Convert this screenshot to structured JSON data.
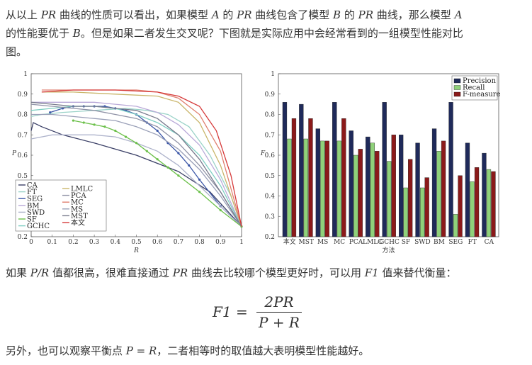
{
  "text": {
    "p1_a": "从以上 ",
    "p1_m1": "PR",
    "p1_b": " 曲线的性质可以看出，如果模型 ",
    "p1_m2": "A",
    "p1_c": " 的 ",
    "p1_m3": "PR",
    "p1_d": " 曲线包含了模型 ",
    "p1_m4": "B",
    "p1_e": " 的 ",
    "p1_m5": "PR",
    "p1_f": " 曲线，那么模型 ",
    "p1_m6": "A",
    "p1_g": "的性能要优于 ",
    "p1_m7": "B",
    "p1_h": "。但是如果二者发生交叉呢？下图就是实际应用中会经常看到的一组模型性能对比",
    "p1_i": "图。",
    "p2_a": "如果 ",
    "p2_m1": "P/R",
    "p2_b": " 值都很高，很难直接通过 ",
    "p2_m2": "PR",
    "p2_c": " 曲线去比较哪个模型更好时，可以用 ",
    "p2_m3": "F1",
    "p2_d": " 值来替代衡量：",
    "formula_lhs": "F1 =",
    "formula_num": "2PR",
    "formula_den": "P + R",
    "p3_a": "另外，也可以观察平衡点 ",
    "p3_m1": "P = R",
    "p3_b": "，二者相等时的取值越大表明模型性能越好。"
  },
  "chart_data": [
    {
      "type": "line",
      "xlabel": "R",
      "ylabel": "P",
      "xlim": [
        0,
        1
      ],
      "ylim": [
        0.2,
        1
      ],
      "xticks": [
        "0",
        "0.1",
        "0.2",
        "0.3",
        "0.4",
        "0.5",
        "0.6",
        "0.7",
        "0.8",
        "0.9",
        "1"
      ],
      "yticks": [
        "0.2",
        "0.3",
        "0.4",
        "0.5",
        "0.6",
        "0.7",
        "0.8",
        "0.9",
        "1"
      ],
      "legend_left": [
        "CA",
        "FT",
        "SEG",
        "BM",
        "SWD",
        "SF",
        "GCHC"
      ],
      "legend_right": [
        "LMLC",
        "PCA",
        "MC",
        "MS",
        "MST",
        "本文"
      ],
      "series": [
        {
          "name": "CA",
          "color": "#3a3f66",
          "x": [
            0,
            0.01,
            0.05,
            0.15,
            0.3,
            0.5,
            0.7,
            0.85,
            1
          ],
          "y": [
            0.72,
            0.76,
            0.74,
            0.7,
            0.66,
            0.6,
            0.52,
            0.42,
            0.25
          ]
        },
        {
          "name": "FT",
          "color": "#9bd3c9",
          "x": [
            0,
            0.05,
            0.15,
            0.3,
            0.45,
            0.55,
            0.65,
            0.75,
            0.85,
            0.95,
            1
          ],
          "y": [
            0.79,
            0.8,
            0.81,
            0.82,
            0.83,
            0.82,
            0.8,
            0.74,
            0.6,
            0.4,
            0.25
          ]
        },
        {
          "name": "SEG",
          "color": "#3d58a8",
          "x": [
            0.09,
            0.15,
            0.2,
            0.25,
            0.3,
            0.35,
            0.4,
            0.45,
            0.5,
            0.55,
            0.6,
            0.65,
            0.7,
            0.75,
            0.8,
            0.9,
            1
          ],
          "y": [
            0.81,
            0.83,
            0.84,
            0.84,
            0.84,
            0.84,
            0.83,
            0.82,
            0.8,
            0.76,
            0.72,
            0.66,
            0.61,
            0.55,
            0.48,
            0.35,
            0.25
          ]
        },
        {
          "name": "BM",
          "color": "#b9a9d8",
          "x": [
            0,
            0.1,
            0.2,
            0.3,
            0.4,
            0.5,
            0.6,
            0.7,
            0.8,
            0.9,
            1
          ],
          "y": [
            0.86,
            0.86,
            0.86,
            0.86,
            0.85,
            0.84,
            0.81,
            0.75,
            0.65,
            0.48,
            0.25
          ]
        },
        {
          "name": "SWD",
          "color": "#aeb3cb",
          "x": [
            0,
            0.1,
            0.2,
            0.3,
            0.4,
            0.5,
            0.6,
            0.7,
            0.8,
            0.9,
            1
          ],
          "y": [
            0.68,
            0.7,
            0.7,
            0.7,
            0.69,
            0.66,
            0.62,
            0.55,
            0.45,
            0.35,
            0.25
          ]
        },
        {
          "name": "SF",
          "color": "#6cc04a",
          "x": [
            0.2,
            0.25,
            0.3,
            0.35,
            0.4,
            0.45,
            0.5,
            0.55,
            0.6,
            0.65,
            0.7,
            0.8,
            0.9,
            1
          ],
          "y": [
            0.77,
            0.76,
            0.75,
            0.74,
            0.72,
            0.69,
            0.66,
            0.62,
            0.58,
            0.54,
            0.5,
            0.42,
            0.33,
            0.25
          ]
        },
        {
          "name": "GCHC",
          "color": "#7fcfc3",
          "x": [
            0,
            0.1,
            0.2,
            0.3,
            0.4,
            0.5,
            0.6,
            0.7,
            0.8,
            0.9,
            1
          ],
          "y": [
            0.82,
            0.83,
            0.84,
            0.84,
            0.83,
            0.8,
            0.76,
            0.7,
            0.6,
            0.45,
            0.25
          ]
        },
        {
          "name": "LMLC",
          "color": "#c9b56a",
          "x": [
            0.05,
            0.2,
            0.4,
            0.6,
            0.7,
            0.8,
            0.9,
            1
          ],
          "y": [
            0.91,
            0.91,
            0.9,
            0.89,
            0.86,
            0.76,
            0.55,
            0.25
          ]
        },
        {
          "name": "PCA",
          "color": "#8f92a6",
          "x": [
            0,
            0.1,
            0.2,
            0.3,
            0.4,
            0.5,
            0.6,
            0.7,
            0.8,
            0.9,
            1
          ],
          "y": [
            0.85,
            0.84,
            0.83,
            0.82,
            0.8,
            0.78,
            0.74,
            0.66,
            0.55,
            0.42,
            0.25
          ]
        },
        {
          "name": "MC",
          "color": "#e08070",
          "x": [
            0.05,
            0.2,
            0.4,
            0.5,
            0.6,
            0.7,
            0.8,
            0.9,
            1
          ],
          "y": [
            0.92,
            0.92,
            0.92,
            0.92,
            0.91,
            0.88,
            0.8,
            0.62,
            0.25
          ]
        },
        {
          "name": "MS",
          "color": "#9aa0b8",
          "x": [
            0,
            0.1,
            0.2,
            0.3,
            0.4,
            0.5,
            0.6,
            0.7,
            0.8,
            0.9,
            1
          ],
          "y": [
            0.8,
            0.8,
            0.79,
            0.78,
            0.77,
            0.74,
            0.7,
            0.63,
            0.53,
            0.4,
            0.25
          ]
        },
        {
          "name": "MST",
          "color": "#777a8c",
          "x": [
            0,
            0.1,
            0.2,
            0.3,
            0.4,
            0.5,
            0.6,
            0.7,
            0.8,
            0.9,
            1
          ],
          "y": [
            0.86,
            0.85,
            0.84,
            0.84,
            0.83,
            0.82,
            0.78,
            0.7,
            0.58,
            0.42,
            0.25
          ]
        },
        {
          "name": "本文",
          "color": "#d63a3a",
          "x": [
            0.05,
            0.2,
            0.4,
            0.6,
            0.7,
            0.8,
            0.88,
            0.95,
            1
          ],
          "y": [
            0.91,
            0.92,
            0.92,
            0.91,
            0.89,
            0.84,
            0.72,
            0.5,
            0.25
          ]
        }
      ]
    },
    {
      "type": "bar",
      "xlabel": "方法",
      "ylabel": "F",
      "ylim": [
        0.2,
        1
      ],
      "yticks": [
        "0.2",
        "0.3",
        "0.4",
        "0.5",
        "0.6",
        "0.7",
        "0.8",
        "0.9",
        "1"
      ],
      "categories": [
        "本文",
        "MST",
        "MS",
        "MC",
        "PCA",
        "LMLC",
        "GCHC",
        "SF",
        "SWD",
        "BM",
        "SEG",
        "FT",
        "CA"
      ],
      "series": [
        {
          "name": "Precision",
          "color": "#1f2a5a",
          "values": [
            0.86,
            0.85,
            0.73,
            0.86,
            0.72,
            0.69,
            0.86,
            0.7,
            0.66,
            0.73,
            0.86,
            0.66,
            0.61
          ]
        },
        {
          "name": "Recall",
          "color": "#8fd17a",
          "values": [
            0.68,
            0.68,
            0.67,
            0.67,
            0.6,
            0.66,
            0.57,
            0.44,
            0.44,
            0.62,
            0.31,
            0.47,
            0.53
          ]
        },
        {
          "name": "F-measure",
          "color": "#8b1a1a",
          "values": [
            0.78,
            0.78,
            0.67,
            0.78,
            0.63,
            0.62,
            0.7,
            0.58,
            0.49,
            0.67,
            0.5,
            0.54,
            0.52
          ]
        }
      ]
    }
  ]
}
